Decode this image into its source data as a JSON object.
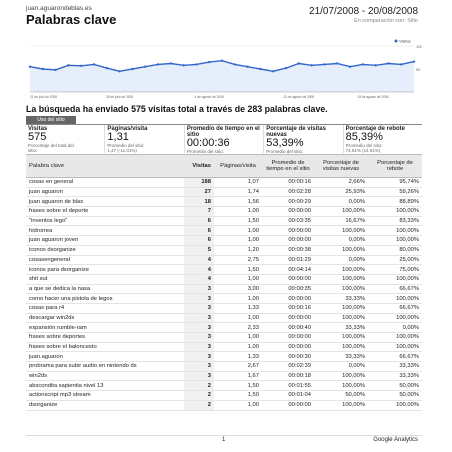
{
  "header": {
    "site": "juan.aguarondeblas.es",
    "title": "Palabras clave",
    "date_range": "21/07/2008 - 20/08/2008",
    "comparison": "En comparación con: Sitio"
  },
  "chart_data": {
    "type": "line",
    "title": "",
    "legend": "Visitas",
    "ylim": [
      0,
      100
    ],
    "y_ticks": [
      "50",
      "100"
    ],
    "x_ticks": [
      "21 de julio de 2008",
      "28 de julio de 2008",
      "4 de agosto de 2008",
      "11 de agosto de 2008",
      "18 de agosto de 2008"
    ],
    "values": [
      55,
      50,
      48,
      58,
      57,
      60,
      52,
      45,
      50,
      55,
      60,
      62,
      58,
      60,
      65,
      68,
      60,
      55,
      50,
      45,
      52,
      62,
      58,
      60,
      62,
      55,
      60,
      58,
      62,
      60,
      66
    ],
    "color": "#3366cc"
  },
  "summary": "La búsqueda ha enviado 575 visitas total a través de 283 palabras clave.",
  "tab": "Uso del sitio",
  "metrics": [
    {
      "label": "Visitas",
      "value": "575",
      "sub1": "Porcentaje del total del",
      "sub2": "sitio:",
      "sub3": "59,59%"
    },
    {
      "label": "Páginas/visita",
      "value": "1,31",
      "sub1": "Promedio del sitio:",
      "sub2": "1,47 (-11,01%)",
      "sub3": ""
    },
    {
      "label": "Promedio de tiempo en el sitio",
      "value": "00:00:36",
      "sub1": "Promedio del sitio:",
      "sub2": "00:01:07 (-46,39%)",
      "sub3": ""
    },
    {
      "label": "Porcentaje de visitas nuevas",
      "value": "53,39%",
      "sub1": "Promedio del sitio:",
      "sub2": "55,65% (-4,06%)",
      "sub3": ""
    },
    {
      "label": "Porcentaje de rebote",
      "value": "85,39%",
      "sub1": "Promedio del sitio:",
      "sub2": "74,51% (14,61%)",
      "sub3": ""
    }
  ],
  "table": {
    "headers": [
      "Palabra clave",
      "Visitas",
      "Páginas/visita",
      "Promedio de tiempo en el sitio",
      "Porcentaje de visitas nuevas",
      "Porcentaje de rebote"
    ],
    "rows": [
      [
        "cosas en general",
        "188",
        "1,07",
        "00:00:16",
        "2,66%",
        "95,74%"
      ],
      [
        "juan aguaron",
        "27",
        "1,74",
        "00:02:28",
        "25,93%",
        "59,26%"
      ],
      [
        "juan aguaron de blas",
        "18",
        "1,56",
        "00:00:29",
        "0,00%",
        "88,89%"
      ],
      [
        "frases sobre el deporte",
        "7",
        "1,00",
        "00:00:00",
        "100,00%",
        "100,00%"
      ],
      [
        "\"inventos lego\"",
        "6",
        "1,50",
        "00:03:35",
        "16,67%",
        "83,33%"
      ],
      [
        "hidrorrea",
        "6",
        "1,00",
        "00:00:00",
        "100,00%",
        "100,00%"
      ],
      [
        "juan aguaron joven",
        "6",
        "1,00",
        "00:00:00",
        "0,00%",
        "100,00%"
      ],
      [
        "iconos dsorganize",
        "5",
        "1,20",
        "00:00:38",
        "100,00%",
        "80,00%"
      ],
      [
        "cosasengeneral",
        "4",
        "2,75",
        "00:01:29",
        "0,00%",
        "25,00%"
      ],
      [
        "iconos para dsorganize",
        "4",
        "1,50",
        "00:04:14",
        "100,00%",
        "75,00%"
      ],
      [
        "shit sut",
        "4",
        "1,00",
        "00:00:00",
        "100,00%",
        "100,00%"
      ],
      [
        "a que se dedica la nasa",
        "3",
        "3,00",
        "00:00:35",
        "100,00%",
        "66,67%"
      ],
      [
        "como hacer una pistola de legos",
        "3",
        "1,00",
        "00:00:00",
        "33,33%",
        "100,00%"
      ],
      [
        "cosas para r4",
        "3",
        "1,33",
        "00:00:16",
        "100,00%",
        "66,67%"
      ],
      [
        "descargar win2ds",
        "3",
        "1,00",
        "00:00:00",
        "100,00%",
        "100,00%"
      ],
      [
        "expansión rumble-ram",
        "3",
        "2,33",
        "00:00:40",
        "33,33%",
        "0,00%"
      ],
      [
        "frases sobre deportes",
        "3",
        "1,00",
        "00:00:00",
        "100,00%",
        "100,00%"
      ],
      [
        "frases sobre el baloncesto",
        "3",
        "1,00",
        "00:00:00",
        "100,00%",
        "100,00%"
      ],
      [
        "juan.aguaron",
        "3",
        "1,33",
        "00:00:30",
        "33,33%",
        "66,67%"
      ],
      [
        "probrama para subir audio en nintendo ds",
        "3",
        "2,67",
        "00:02:39",
        "0,00%",
        "33,33%"
      ],
      [
        "win2ds",
        "3",
        "1,67",
        "00:00:18",
        "100,00%",
        "33,33%"
      ],
      [
        "abscondita sapientia nivel 13",
        "2",
        "1,50",
        "00:01:55",
        "100,00%",
        "50,00%"
      ],
      [
        "actionscript mp3 stream",
        "2",
        "1,50",
        "00:01:04",
        "50,00%",
        "50,00%"
      ],
      [
        "dsorganize",
        "2",
        "1,00",
        "00:00:00",
        "100,00%",
        "100,00%"
      ]
    ]
  },
  "footer": {
    "page": "1",
    "brand": "Google Analytics"
  }
}
